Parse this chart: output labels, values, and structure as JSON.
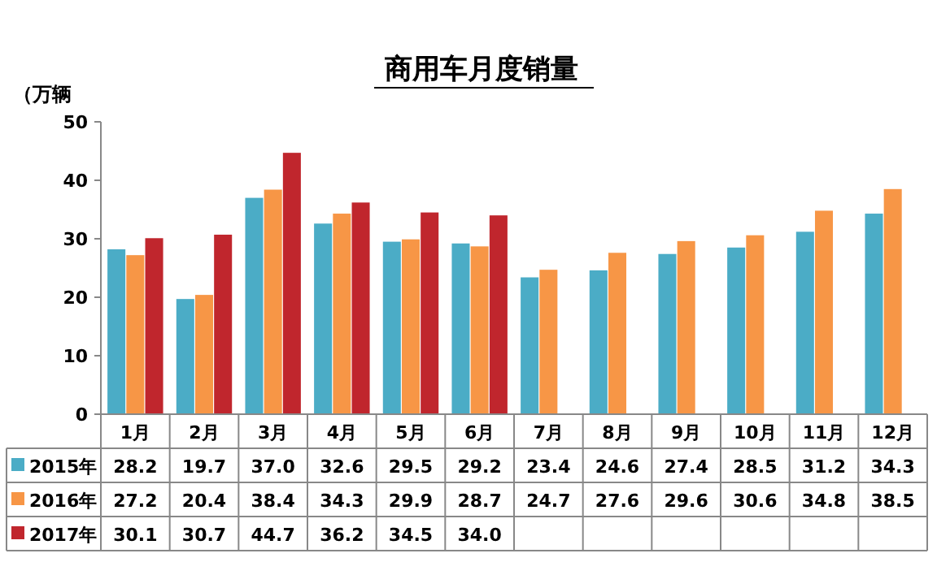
{
  "chart_data": {
    "type": "bar",
    "title": "商用车月度销量",
    "ylabel": "（万辆",
    "categories": [
      "1月",
      "2月",
      "3月",
      "4月",
      "5月",
      "6月",
      "7月",
      "8月",
      "9月",
      "10月",
      "11月",
      "12月"
    ],
    "series": [
      {
        "name": "2015年",
        "color": "#4bacc6",
        "values": [
          28.2,
          19.7,
          37.0,
          32.6,
          29.5,
          29.2,
          23.4,
          24.6,
          27.4,
          28.5,
          31.2,
          34.3
        ],
        "value_labels": [
          "28.2",
          "19.7",
          "37.0",
          "32.6",
          "29.5",
          "29.2",
          "23.4",
          "24.6",
          "27.4",
          "28.5",
          "31.2",
          "34.3"
        ]
      },
      {
        "name": "2016年",
        "color": "#f79646",
        "values": [
          27.2,
          20.4,
          38.4,
          34.3,
          29.9,
          28.7,
          24.7,
          27.6,
          29.6,
          30.6,
          34.8,
          38.5
        ],
        "value_labels": [
          "27.2",
          "20.4",
          "38.4",
          "34.3",
          "29.9",
          "28.7",
          "24.7",
          "27.6",
          "29.6",
          "30.6",
          "34.8",
          "38.5"
        ]
      },
      {
        "name": "2017年",
        "color": "#c0262d",
        "values": [
          30.1,
          30.7,
          44.7,
          36.2,
          34.5,
          34.0,
          null,
          null,
          null,
          null,
          null,
          null
        ],
        "value_labels": [
          "30.1",
          "30.7",
          "44.7",
          "36.2",
          "34.5",
          "34.0",
          null,
          null,
          null,
          null,
          null,
          null
        ]
      }
    ],
    "ylim": [
      0,
      50
    ],
    "yticks": [
      0,
      10,
      20,
      30,
      40,
      50
    ],
    "legend": "bottom"
  }
}
